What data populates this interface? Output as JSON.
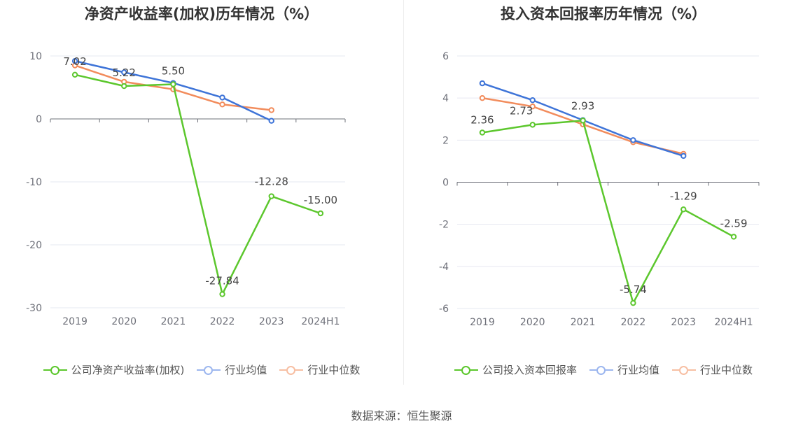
{
  "source": "数据来源：恒生聚源",
  "chart_data": [
    {
      "type": "line",
      "title": "净资产收益率(加权)历年情况（%）",
      "categories": [
        "2019",
        "2020",
        "2021",
        "2022",
        "2023",
        "2024H1"
      ],
      "ylim": [
        -30,
        10
      ],
      "yticks": [
        10,
        0,
        -10,
        -20,
        -30
      ],
      "grid": true,
      "legend_position": "bottom",
      "series": [
        {
          "name": "公司净资产收益率(加权)",
          "color": "#5cc72d",
          "values": [
            7.02,
            5.22,
            5.5,
            -27.84,
            -12.28,
            -15.0
          ],
          "labels": [
            "7.02",
            "5.22",
            "5.50",
            "-27.84",
            "-12.28",
            "-15.00"
          ]
        },
        {
          "name": "行业均值",
          "color": "#3e74d8",
          "values": [
            9.2,
            7.4,
            5.7,
            3.4,
            -0.3,
            null
          ]
        },
        {
          "name": "行业中位数",
          "color": "#f28c5c",
          "values": [
            8.5,
            5.9,
            4.7,
            2.3,
            1.4,
            null
          ]
        }
      ]
    },
    {
      "type": "line",
      "title": "投入资本回报率历年情况（%）",
      "categories": [
        "2019",
        "2020",
        "2021",
        "2022",
        "2023",
        "2024H1"
      ],
      "ylim": [
        -6,
        6
      ],
      "yticks": [
        6,
        4,
        2,
        0,
        -2,
        -4,
        -6
      ],
      "grid": true,
      "legend_position": "bottom",
      "series": [
        {
          "name": "公司投入资本回报率",
          "color": "#5cc72d",
          "values": [
            2.36,
            2.73,
            2.93,
            -5.74,
            -1.29,
            -2.59
          ],
          "labels": [
            "2.36",
            "2.73",
            "2.93",
            "-5.74",
            "-1.29",
            "-2.59"
          ]
        },
        {
          "name": "行业均值",
          "color": "#3e74d8",
          "values": [
            4.7,
            3.9,
            2.95,
            2.0,
            1.25,
            null
          ]
        },
        {
          "name": "行业中位数",
          "color": "#f28c5c",
          "values": [
            4.0,
            3.6,
            2.75,
            1.9,
            1.35,
            null
          ]
        }
      ]
    }
  ]
}
